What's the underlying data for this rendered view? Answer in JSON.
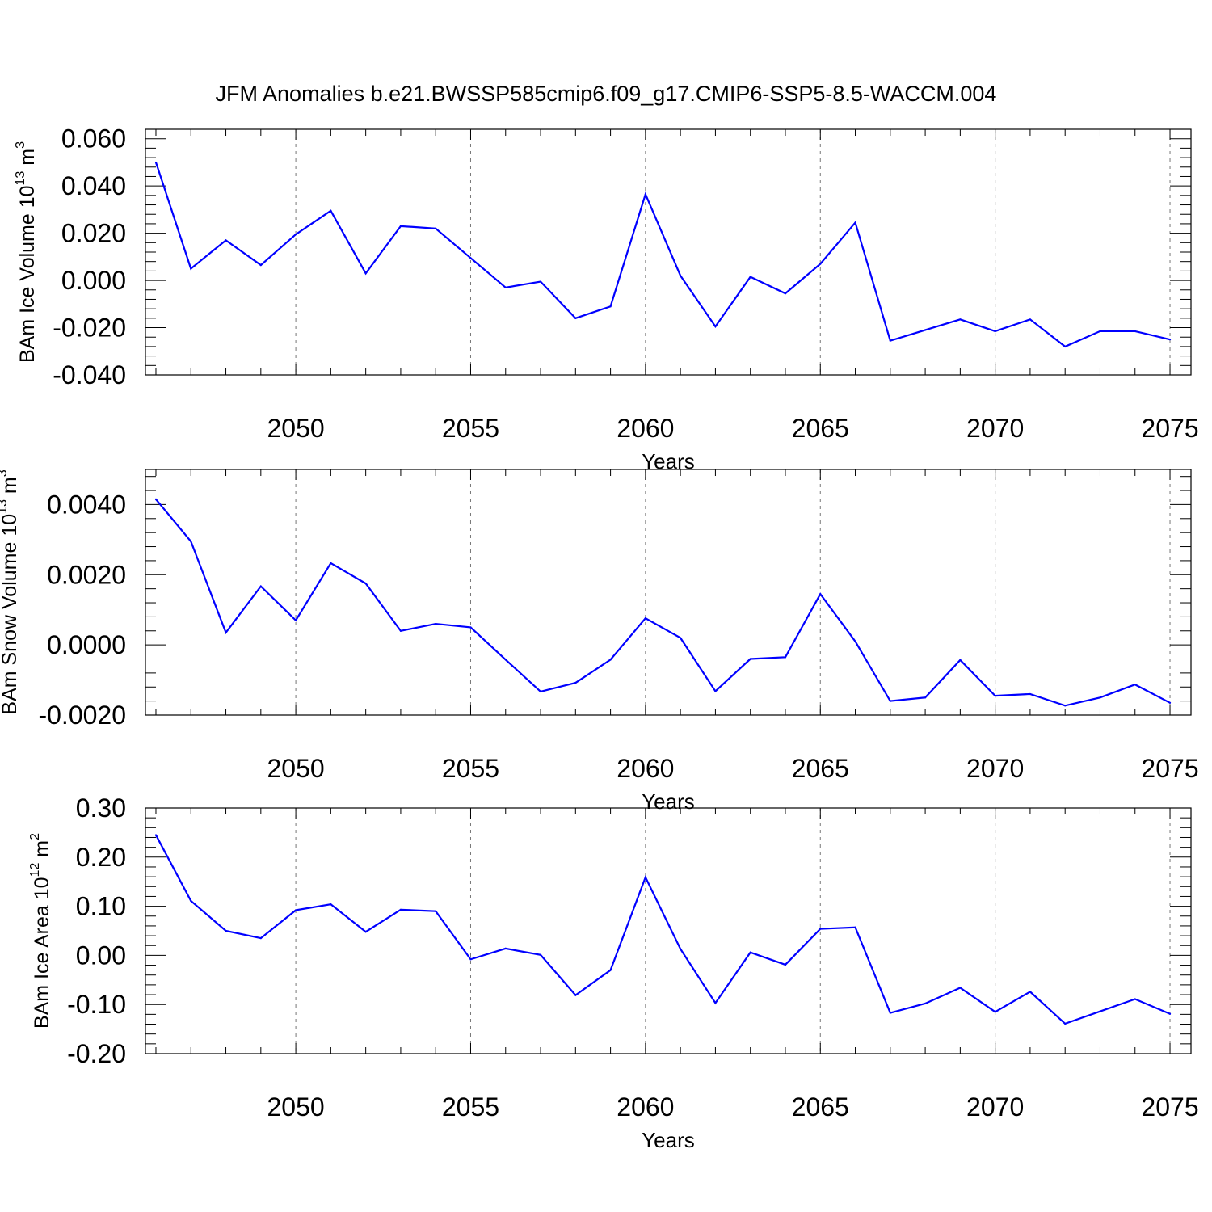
{
  "figure_title": "JFM Anomalies b.e21.BWSSP585cmip6.f09_g17.CMIP6-SSP5-8.5-WACCM.004",
  "colors": {
    "line": "#0000ff",
    "axis": "#000000",
    "grid": "#777777"
  },
  "chart_data": [
    {
      "type": "line",
      "ylabel_main": "BAm Ice Volume 10",
      "ylabel_exp": "13",
      "ylabel_unit": " m",
      "ylabel_unit_exp": "3",
      "xlabel": "Years",
      "xlim": [
        2045.7,
        2075.6
      ],
      "ylim": [
        -0.04,
        0.064
      ],
      "xticks": [
        2050,
        2055,
        2060,
        2065,
        2070,
        2075
      ],
      "xtick_labels": [
        "2050",
        "2055",
        "2060",
        "2065",
        "2070",
        "2075"
      ],
      "yticks": [
        -0.04,
        -0.02,
        0.0,
        0.02,
        0.04,
        0.06
      ],
      "ytick_labels": [
        "-0.040",
        "-0.020",
        "0.000",
        "0.020",
        "0.040",
        "0.060"
      ],
      "x": [
        2046,
        2047,
        2048,
        2049,
        2050,
        2051,
        2052,
        2053,
        2054,
        2055,
        2056,
        2057,
        2058,
        2059,
        2060,
        2061,
        2062,
        2063,
        2064,
        2065,
        2066,
        2067,
        2068,
        2069,
        2070,
        2071,
        2072,
        2073,
        2074,
        2075
      ],
      "y": [
        0.05,
        0.005,
        0.017,
        0.0065,
        0.0195,
        0.0295,
        0.003,
        0.023,
        0.022,
        0.0095,
        -0.003,
        -0.0005,
        -0.016,
        -0.011,
        0.0365,
        0.002,
        -0.0195,
        0.0015,
        -0.0055,
        0.007,
        0.0245,
        -0.0255,
        -0.021,
        -0.0165,
        -0.0215,
        -0.0165,
        -0.028,
        -0.0215,
        -0.0215,
        -0.025
      ]
    },
    {
      "type": "line",
      "ylabel_main": "BAm Snow Volume 10",
      "ylabel_exp": "13",
      "ylabel_unit": " m",
      "ylabel_unit_exp": "3",
      "xlabel": "Years",
      "xlim": [
        2045.7,
        2075.6
      ],
      "ylim": [
        -0.002,
        0.005
      ],
      "xticks": [
        2050,
        2055,
        2060,
        2065,
        2070,
        2075
      ],
      "xtick_labels": [
        "2050",
        "2055",
        "2060",
        "2065",
        "2070",
        "2075"
      ],
      "yticks": [
        -0.002,
        0.0,
        0.002,
        0.004
      ],
      "ytick_labels": [
        "-0.0020",
        "0.0000",
        "0.0020",
        "0.0040"
      ],
      "x": [
        2046,
        2047,
        2048,
        2049,
        2050,
        2051,
        2052,
        2053,
        2054,
        2055,
        2056,
        2057,
        2058,
        2059,
        2060,
        2061,
        2062,
        2063,
        2064,
        2065,
        2066,
        2067,
        2068,
        2069,
        2070,
        2071,
        2072,
        2073,
        2074,
        2075
      ],
      "y": [
        0.00415,
        0.00295,
        0.00035,
        0.00167,
        0.0007,
        0.00233,
        0.00175,
        0.0004,
        0.0006,
        0.0005,
        -0.00042,
        -0.00133,
        -0.00108,
        -0.00042,
        0.00076,
        0.0002,
        -0.00132,
        -0.0004,
        -0.00035,
        0.00145,
        0.0001,
        -0.0016,
        -0.0015,
        -0.00043,
        -0.00145,
        -0.0014,
        -0.00173,
        -0.0015,
        -0.00113,
        -0.00165
      ]
    },
    {
      "type": "line",
      "ylabel_main": "BAm Ice Area 10",
      "ylabel_exp": "12",
      "ylabel_unit": " m",
      "ylabel_unit_exp": "2",
      "xlabel": "Years",
      "xlim": [
        2045.7,
        2075.6
      ],
      "ylim": [
        -0.2,
        0.3
      ],
      "xticks": [
        2050,
        2055,
        2060,
        2065,
        2070,
        2075
      ],
      "xtick_labels": [
        "2050",
        "2055",
        "2060",
        "2065",
        "2070",
        "2075"
      ],
      "yticks": [
        -0.2,
        -0.1,
        0.0,
        0.1,
        0.2,
        0.3
      ],
      "ytick_labels": [
        "-0.20",
        "-0.10",
        "0.00",
        "0.10",
        "0.20",
        "0.30"
      ],
      "x": [
        2046,
        2047,
        2048,
        2049,
        2050,
        2051,
        2052,
        2053,
        2054,
        2055,
        2056,
        2057,
        2058,
        2059,
        2060,
        2061,
        2062,
        2063,
        2064,
        2065,
        2066,
        2067,
        2068,
        2069,
        2070,
        2071,
        2072,
        2073,
        2074,
        2075
      ],
      "y": [
        0.245,
        0.111,
        0.05,
        0.035,
        0.092,
        0.104,
        0.048,
        0.093,
        0.09,
        -0.008,
        0.014,
        0.001,
        -0.081,
        -0.03,
        0.159,
        0.013,
        -0.097,
        0.006,
        -0.019,
        0.054,
        0.057,
        -0.117,
        -0.098,
        -0.066,
        -0.115,
        -0.074,
        -0.139,
        -0.114,
        -0.089,
        -0.119
      ]
    }
  ]
}
